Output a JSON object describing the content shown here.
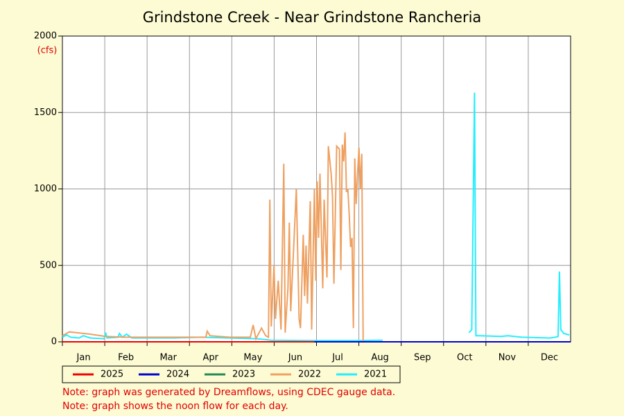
{
  "chart_data": {
    "type": "line",
    "title": "Grindstone Creek - Near Grindstone Rancheria",
    "y_label": "(cfs)",
    "categories": [
      "Jan",
      "Feb",
      "Mar",
      "Apr",
      "May",
      "Jun",
      "Jul",
      "Aug",
      "Sep",
      "Oct",
      "Nov",
      "Dec"
    ],
    "xlim": [
      0,
      365
    ],
    "ylim": [
      0,
      2000
    ],
    "yticks": [
      0,
      500,
      1000,
      1500,
      2000
    ],
    "grid": true,
    "series": [
      {
        "name": "2025",
        "color": "#ee0000",
        "x": [
          0,
          181
        ],
        "values": [
          0,
          0
        ]
      },
      {
        "name": "2024",
        "color": "#0000cc",
        "x": [
          0,
          365
        ],
        "values": [
          0,
          0
        ]
      },
      {
        "name": "2023",
        "color": "#228855",
        "x": [],
        "values": []
      },
      {
        "name": "2022",
        "color": "#eea060",
        "x": [
          0,
          5,
          10,
          20,
          31,
          45,
          60,
          75,
          90,
          103,
          104,
          106,
          120,
          135,
          137,
          139,
          143,
          146,
          148,
          149,
          150,
          152,
          153,
          155,
          157,
          159,
          160,
          162,
          163,
          164,
          166,
          168,
          170,
          171,
          173,
          174,
          175,
          176,
          178,
          179,
          181,
          182,
          183,
          184,
          185,
          187,
          188,
          190,
          191,
          193,
          194,
          195,
          197,
          199,
          200,
          201,
          202,
          203,
          204,
          205,
          206,
          207,
          208,
          209,
          210,
          211,
          212,
          213,
          214,
          215,
          216
        ],
        "values": [
          40,
          65,
          60,
          50,
          35,
          30,
          30,
          30,
          30,
          30,
          70,
          40,
          30,
          30,
          110,
          20,
          90,
          40,
          30,
          930,
          100,
          500,
          150,
          400,
          80,
          1165,
          60,
          350,
          780,
          200,
          600,
          1000,
          150,
          90,
          700,
          300,
          630,
          250,
          920,
          80,
          1000,
          400,
          1050,
          680,
          1100,
          350,
          930,
          420,
          1280,
          1100,
          950,
          380,
          1280,
          1260,
          470,
          1290,
          1180,
          1370,
          980,
          1000,
          830,
          620,
          680,
          90,
          1200,
          900,
          1100,
          1270,
          1000,
          1230,
          0
        ]
      },
      {
        "name": "2021",
        "color": "#22eeff",
        "x": [
          0,
          3,
          6,
          12,
          15,
          20,
          30,
          31,
          32,
          40,
          41,
          43,
          46,
          50,
          60,
          80,
          100,
          120,
          140,
          150,
          180,
          210,
          230,
          262,
          292,
          294,
          296,
          297,
          300,
          315,
          320,
          330,
          350,
          354,
          356,
          357,
          358,
          360,
          364
        ],
        "values": [
          30,
          45,
          30,
          25,
          40,
          25,
          20,
          60,
          25,
          30,
          55,
          30,
          50,
          25,
          25,
          25,
          30,
          25,
          20,
          10,
          8,
          8,
          10,
          null,
          60,
          80,
          1630,
          40,
          40,
          35,
          40,
          30,
          25,
          30,
          35,
          460,
          80,
          55,
          45
        ]
      }
    ],
    "notes": [
      "Note: graph was generated by Dreamflows, using CDEC gauge data.",
      "Note: graph shows the noon flow for each day."
    ]
  }
}
